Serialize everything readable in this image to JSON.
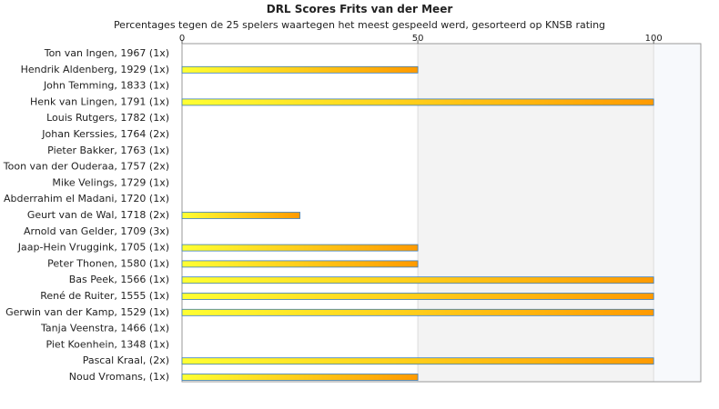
{
  "chart_data": {
    "type": "bar",
    "orientation": "horizontal",
    "title": "DRL Scores Frits van der Meer",
    "subtitle": "Percentages tegen de 25 spelers waartegen het meest gespeeld werd, gesorteerd op KNSB rating",
    "categories": [
      "Ton van Ingen, 1967 (1x)",
      "Hendrik Aldenberg, 1929 (1x)",
      "John Temming, 1833 (1x)",
      "Henk van Lingen, 1791 (1x)",
      "Louis Rutgers, 1782 (1x)",
      "Johan Kerssies, 1764 (2x)",
      "Pieter Bakker, 1763 (1x)",
      "Toon van der Ouderaa, 1757 (2x)",
      "Mike Velings, 1729 (1x)",
      "Abderrahim el Madani, 1720 (1x)",
      "Geurt van de Wal, 1718 (2x)",
      "Arnold van Gelder, 1709 (3x)",
      "Jaap-Hein Vruggink, 1705 (1x)",
      "Peter Thonen, 1580 (1x)",
      "Bas Peek, 1566 (1x)",
      "René de Ruiter, 1555 (1x)",
      "Gerwin van der Kamp, 1529 (1x)",
      "Tanja Veenstra, 1466 (1x)",
      "Piet Koenhein, 1348 (1x)",
      "Pascal Kraal,  (2x)",
      "Noud Vromans,  (1x)"
    ],
    "values": [
      0,
      50,
      0,
      100,
      0,
      0,
      0,
      0,
      0,
      0,
      25,
      0,
      50,
      50,
      100,
      100,
      100,
      0,
      0,
      100,
      50
    ],
    "xlim": [
      0,
      110
    ],
    "xticks": [
      0,
      50,
      100
    ],
    "xtick_labels": [
      "0",
      "50",
      "100"
    ],
    "x_axis_position": "top",
    "bar_colors": {
      "start": "#ffff33",
      "end": "#ff9a00",
      "border": "#3a7ebf"
    },
    "band_colors": [
      "#ffffff",
      "#f3f3f3",
      "#f7f9fc"
    ]
  }
}
